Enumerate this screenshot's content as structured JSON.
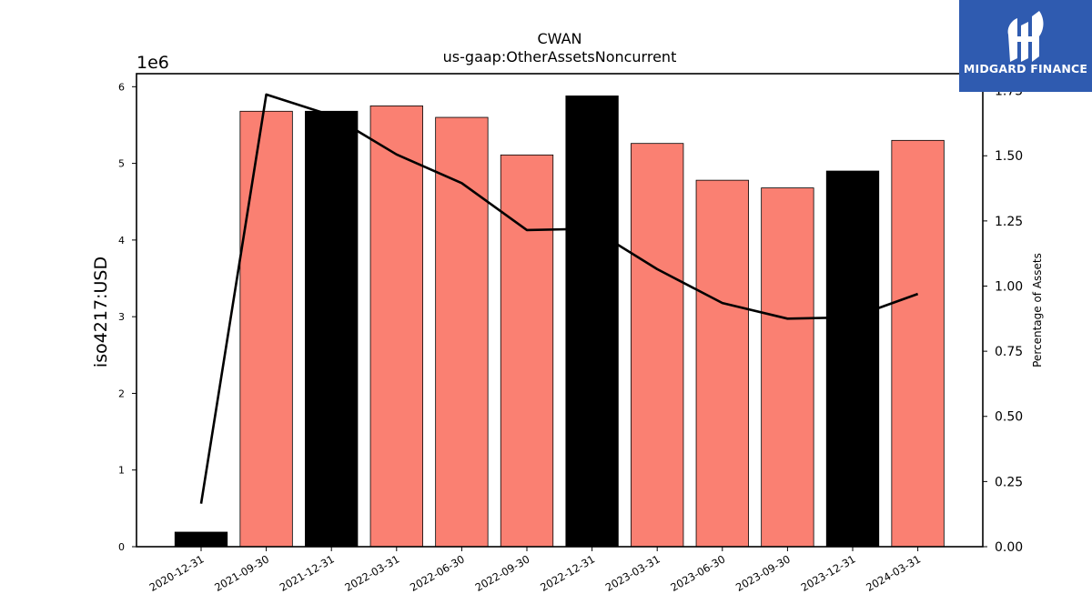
{
  "brand": {
    "name": "MIDGARD FINANCE",
    "color": "#2f5bb0"
  },
  "chart_data": {
    "type": "bar",
    "title": "CWAN",
    "subtitle": "us-gaap:OtherAssetsNoncurrent",
    "ylabel": "iso4217:USD",
    "y2label": "Percentage of Assets",
    "yscale_label": "1e6",
    "ylim": [
      0,
      6170000
    ],
    "y2lim": [
      0,
      1.815
    ],
    "yticks": [
      0,
      1,
      2,
      3,
      4,
      5,
      6
    ],
    "y2ticks": [
      "0.00",
      "0.25",
      "0.50",
      "0.75",
      "1.00",
      "1.25",
      "1.50",
      "1.75"
    ],
    "categories": [
      "2020-12-31",
      "2021-09-30",
      "2021-12-31",
      "2022-03-31",
      "2022-06-30",
      "2022-09-30",
      "2022-12-31",
      "2023-03-31",
      "2023-06-30",
      "2023-09-30",
      "2023-12-31",
      "2024-03-31"
    ],
    "values": [
      190000,
      5680000,
      5680000,
      5750000,
      5600000,
      5110000,
      5880000,
      5260000,
      4780000,
      4680000,
      4900000,
      5300000
    ],
    "bar_colors": [
      "#000000",
      "#fa8072",
      "#000000",
      "#fa8072",
      "#fa8072",
      "#fa8072",
      "#000000",
      "#fa8072",
      "#fa8072",
      "#fa8072",
      "#000000",
      "#fa8072"
    ],
    "line_series": {
      "values": [
        0.165,
        1.735,
        1.655,
        1.505,
        1.395,
        1.215,
        1.22,
        1.065,
        0.935,
        0.875,
        0.88,
        0.97
      ],
      "color": "#000000"
    },
    "grid": false
  }
}
